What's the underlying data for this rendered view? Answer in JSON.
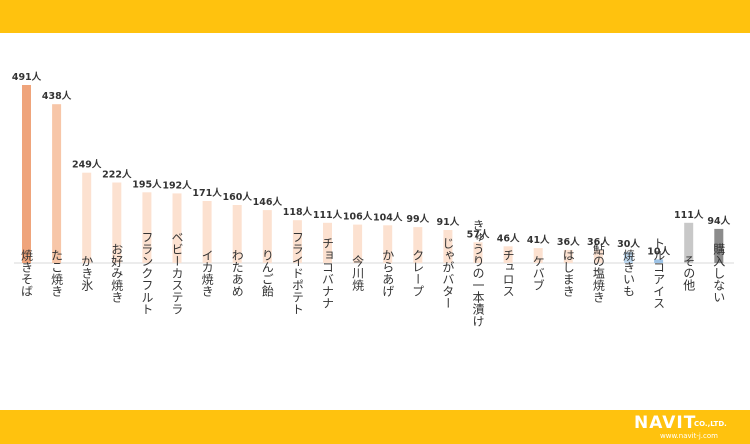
{
  "chart_data": {
    "type": "bar",
    "unit": "人",
    "categories": [
      "焼きそば",
      "たこ焼き",
      "かき氷",
      "お好み焼き",
      "フランクフルト",
      "ベビーカステラ",
      "イカ焼き",
      "わたあめ",
      "りんご飴",
      "フライドポテト",
      "チョコバナナ",
      "今川焼",
      "からあげ",
      "クレープ",
      "じゃがバター",
      "きゅうりの一本漬け",
      "チュロス",
      "ケバブ",
      "はしまき",
      "鮎の塩焼き",
      "焼きいも",
      "トルコアイス",
      "その他",
      "購入しない"
    ],
    "values": [
      491,
      438,
      249,
      222,
      195,
      192,
      171,
      160,
      146,
      118,
      111,
      106,
      104,
      99,
      91,
      57,
      46,
      41,
      36,
      36,
      30,
      10,
      111,
      94
    ],
    "value_labels": [
      "491人",
      "438人",
      "249人",
      "222人",
      "195人",
      "192人",
      "171人",
      "160人",
      "146人",
      "118人",
      "111人",
      "106人",
      "104人",
      "99人",
      "91人",
      "57人",
      "46人",
      "41人",
      "36人",
      "36人",
      "30人",
      "10人",
      "111人",
      "94人"
    ],
    "bar_colors": [
      "#EFA47B",
      "#F7C6A8",
      "#FCE1D0",
      "#FCE1D0",
      "#FCE1D0",
      "#FCE1D0",
      "#FCE1D0",
      "#FCE1D0",
      "#FCE1D0",
      "#FCE1D0",
      "#FCE1D0",
      "#FCE1D0",
      "#FCE1D0",
      "#FCE1D0",
      "#FCE1D0",
      "#FCE1D0",
      "#FCE1D0",
      "#FCE1D0",
      "#FCE1D0",
      "#FCE1D0",
      "#BDD7EE",
      "#9DC3E6",
      "#C8C8C8",
      "#8C8C8C"
    ],
    "ylim": [
      0,
      491
    ],
    "grid": false,
    "legend": "none"
  },
  "brand": {
    "name": "NAVIT",
    "company_suffix": "CO.,LTD.",
    "url": "www.navit-j.com"
  }
}
